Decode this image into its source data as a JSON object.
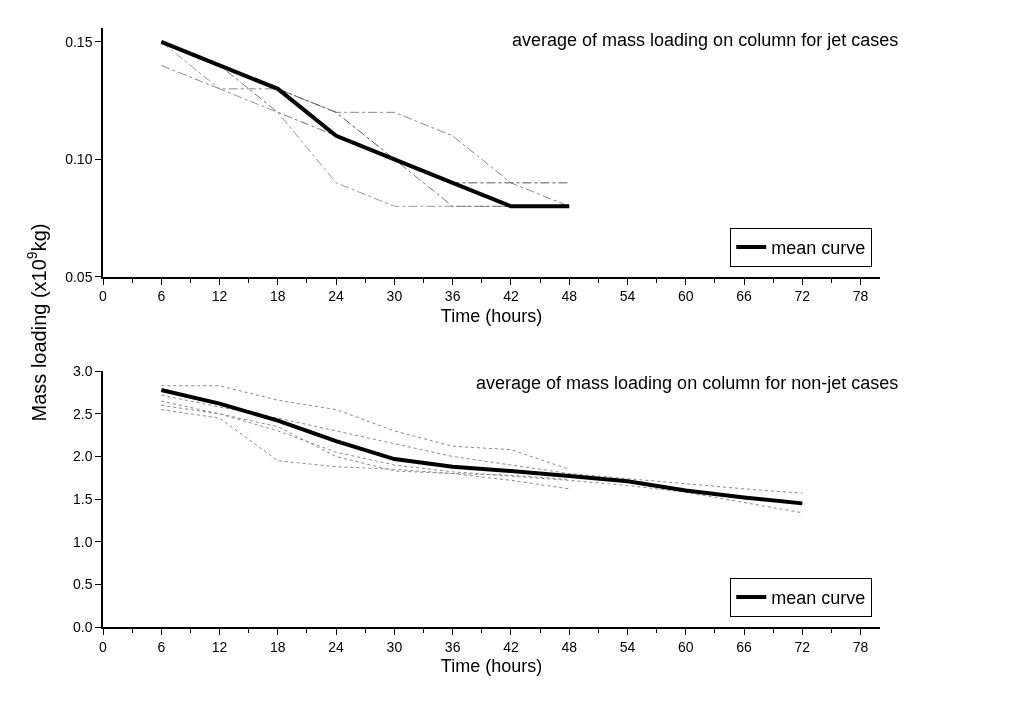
{
  "chart_data": [
    {
      "type": "line",
      "title": "average of mass loading on column for jet cases",
      "xlabel": "Time (hours)",
      "ylabel": "Mass loading (x10$^{9}$kg)",
      "x": [
        6,
        12,
        18,
        24,
        30,
        36,
        42,
        48
      ],
      "series": [
        {
          "color": "#888888",
          "line_style": "dashdot",
          "values": [
            0.14,
            0.13,
            0.13,
            0.12,
            0.12,
            0.11,
            0.09,
            0.08
          ]
        },
        {
          "color": "#999999",
          "line_style": "dashdot",
          "values": [
            0.15,
            0.13,
            0.12,
            0.09,
            0.08,
            0.08,
            0.08,
            0.08
          ]
        },
        {
          "color": "#777777",
          "line_style": "dashdot",
          "values": [
            0.15,
            0.14,
            0.12,
            0.11,
            0.1,
            0.08,
            0.08,
            0.08
          ]
        },
        {
          "color": "#555555",
          "line_style": "dashdot",
          "values": [
            0.15,
            0.14,
            0.13,
            0.12,
            0.1,
            0.09,
            0.09,
            0.09
          ]
        },
        {
          "name": "mean curve",
          "color": "#000000",
          "line_style": "solid",
          "values": [
            0.15,
            0.14,
            0.13,
            0.11,
            0.1,
            0.09,
            0.08,
            0.08
          ]
        }
      ],
      "xlim": [
        0,
        80
      ],
      "xticks": [
        0,
        6,
        12,
        18,
        24,
        30,
        36,
        42,
        48,
        54,
        60,
        66,
        72,
        78
      ],
      "ylim": [
        0.05,
        0.156
      ],
      "yticks": [
        {
          "value": 0.05,
          "label": "0.05"
        },
        {
          "value": 0.1,
          "label": "0.10"
        },
        {
          "value": 0.15,
          "label": "0.15"
        }
      ],
      "legend": "bottom right",
      "marker": "none"
    },
    {
      "type": "line",
      "title": "average of mass loading on column for non-jet cases",
      "xlabel": "Time (hours)",
      "x": [
        6,
        12,
        18,
        24,
        30,
        36,
        42,
        48,
        54,
        60,
        66,
        72
      ],
      "series": [
        {
          "color": "#888888",
          "line_style": "dotted",
          "values": [
            2.83,
            2.83,
            2.66,
            2.55,
            2.3,
            2.12,
            2.08,
            1.85,
            null,
            null,
            null,
            null
          ]
        },
        {
          "color": "#888888",
          "line_style": "dotted",
          "values": [
            2.72,
            2.58,
            2.45,
            2.3,
            2.15,
            2.0,
            1.9,
            1.8,
            1.74,
            1.68,
            1.62,
            1.57
          ]
        },
        {
          "color": "#888888",
          "line_style": "dotted",
          "values": [
            2.65,
            2.5,
            2.3,
            2.05,
            1.9,
            1.82,
            1.77,
            1.72,
            1.66,
            1.58,
            1.46,
            1.34
          ]
        },
        {
          "color": "#888888",
          "line_style": "dotted",
          "values": [
            2.55,
            2.45,
            1.95,
            1.88,
            1.85,
            1.8,
            1.72,
            1.62,
            null,
            null,
            null,
            null
          ]
        },
        {
          "color": "#888888",
          "line_style": "dotted",
          "values": [
            2.6,
            2.5,
            2.35,
            2.0,
            1.83,
            1.8,
            1.78,
            1.73,
            null,
            null,
            null,
            null
          ]
        },
        {
          "name": "mean curve",
          "color": "#000000",
          "line_style": "solid",
          "values": [
            2.78,
            2.62,
            2.42,
            2.18,
            1.97,
            1.88,
            1.83,
            1.77,
            1.71,
            1.6,
            1.52,
            1.45
          ]
        }
      ],
      "xlim": [
        0,
        80
      ],
      "xticks": [
        0,
        6,
        12,
        18,
        24,
        30,
        36,
        42,
        48,
        54,
        60,
        66,
        72,
        78
      ],
      "ylim": [
        0,
        3.0
      ],
      "yticks": [
        {
          "value": 0,
          "label": "0.0"
        },
        {
          "value": 0.5,
          "label": "0.5"
        },
        {
          "value": 1.0,
          "label": "1.0"
        },
        {
          "value": 1.5,
          "label": "1.5"
        },
        {
          "value": 2.0,
          "label": "2.0"
        },
        {
          "value": 2.5,
          "label": "2.5"
        },
        {
          "value": 3.0,
          "label": "3.0"
        }
      ],
      "legend": "bottom right",
      "marker": "none"
    }
  ]
}
